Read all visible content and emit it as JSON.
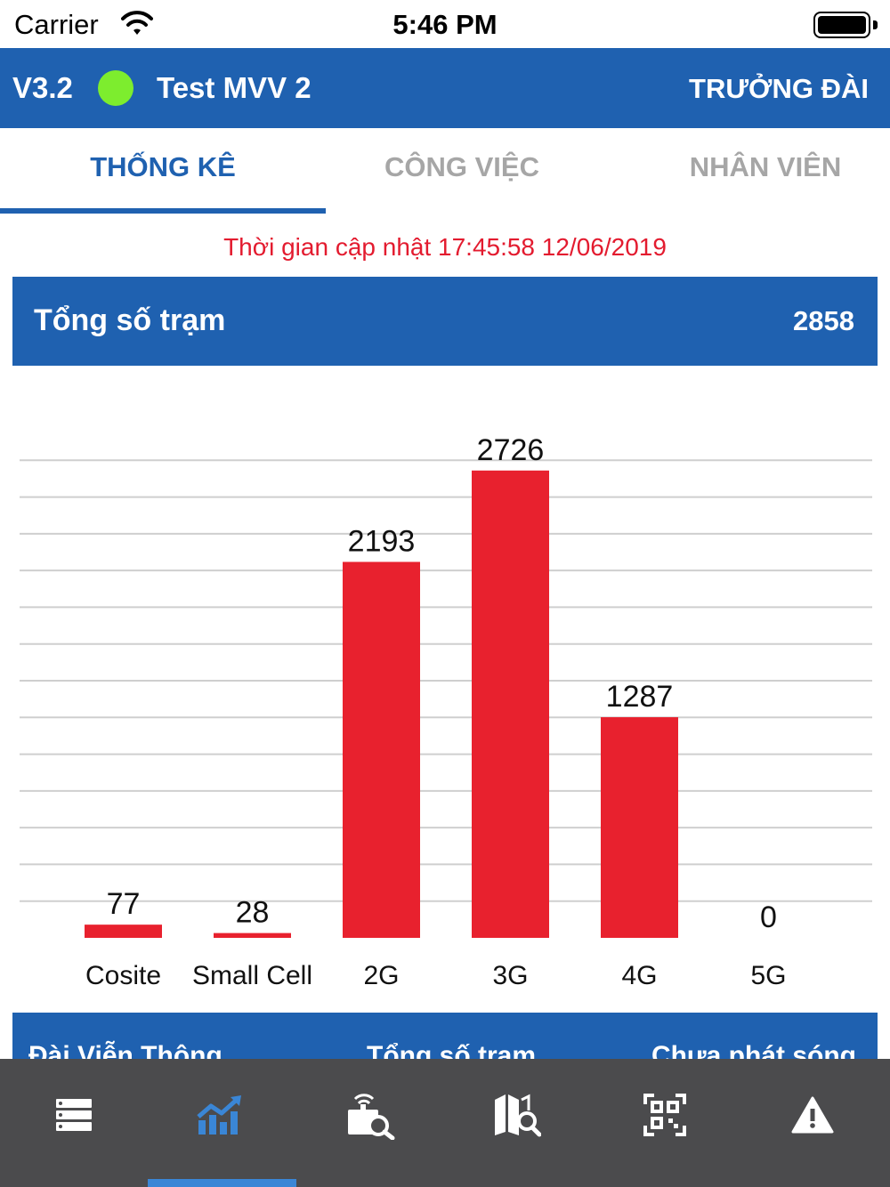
{
  "status_bar": {
    "carrier": "Carrier",
    "time": "5:46 PM"
  },
  "header": {
    "version": "V3.2",
    "station_name": "Test MVV 2",
    "role": "TRƯỞNG ĐÀI",
    "status_color": "#7ded2e"
  },
  "tabs": [
    {
      "label": "THỐNG KÊ",
      "active": true
    },
    {
      "label": "CÔNG VIỆC",
      "active": false
    },
    {
      "label": "NHÂN VIÊN",
      "active": false
    }
  ],
  "update_time": "Thời gian cập nhật 17:45:58  12/06/2019",
  "summary": {
    "title": "Tổng số trạm",
    "value": "2858"
  },
  "chart_data": {
    "type": "bar",
    "categories": [
      "Cosite",
      "Small Cell",
      "2G",
      "3G",
      "4G",
      "5G"
    ],
    "values": [
      77,
      28,
      2193,
      2726,
      1287,
      0
    ],
    "bar_color": "#e8212e",
    "ylim": [
      0,
      3000
    ],
    "grid": true,
    "title": "",
    "xlabel": "",
    "ylabel": ""
  },
  "table_header": {
    "col1": "Đài Viễn Thông",
    "col2": "Tổng số trạm",
    "col3": "Chưa phát sóng"
  },
  "bottom_nav": {
    "items": [
      {
        "icon": "list-icon",
        "active": false
      },
      {
        "icon": "trending-chart-icon",
        "active": true
      },
      {
        "icon": "station-search-icon",
        "active": false
      },
      {
        "icon": "map-search-icon",
        "active": false
      },
      {
        "icon": "qr-scan-icon",
        "active": false
      },
      {
        "icon": "warning-icon",
        "active": false
      }
    ],
    "active_color": "#3a86d6",
    "icon_color": "#ffffff"
  },
  "colors": {
    "brand": "#1f61b0",
    "alert": "#e31b2f",
    "inactive_tab": "#a6a6a6",
    "nav_bg": "#4b4b4d"
  }
}
